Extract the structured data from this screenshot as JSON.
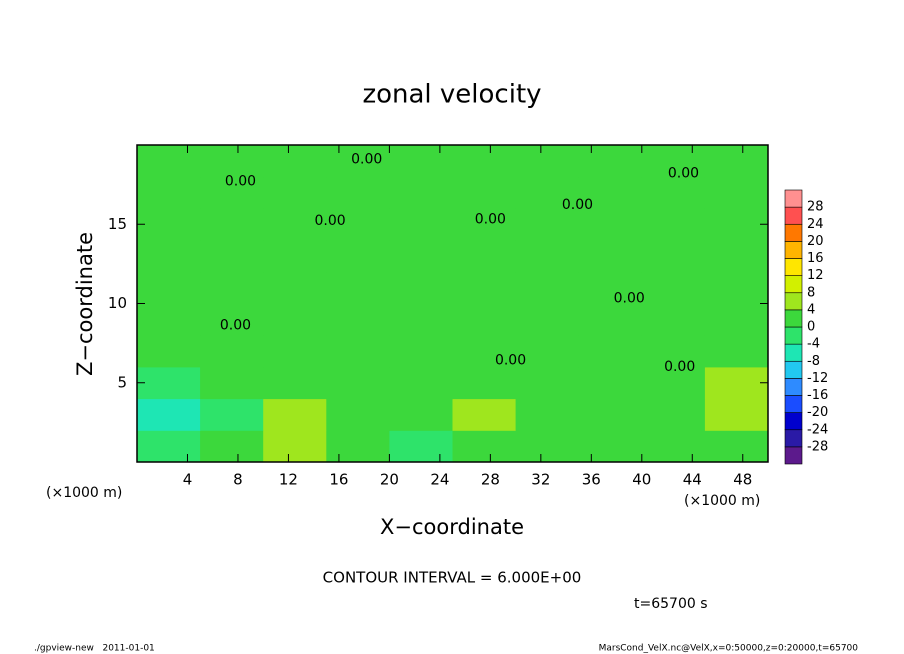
{
  "chart_data": {
    "type": "contour",
    "title": "zonal velocity",
    "xlabel": "X−coordinate",
    "ylabel": "Z−coordinate",
    "xunit": "(×1000 m)",
    "yunit": "(×1000 m)",
    "interval_text": "CONTOUR INTERVAL = 6.000E+00",
    "time_text": "t=65700 s",
    "footer_left": "./gpview-new   2011-01-01",
    "footer_right": "MarsCond_VelX.nc@VelX,x=0:50000,z=0:20000,t=65700",
    "xlim": [
      0,
      50
    ],
    "ylim": [
      0,
      20
    ],
    "xticks": [
      4,
      8,
      12,
      16,
      20,
      24,
      28,
      32,
      36,
      40,
      44,
      48
    ],
    "yticks": [
      5,
      10,
      15
    ],
    "x": [
      2.5,
      7.5,
      12.5,
      17.5,
      22.5,
      27.5,
      32.5,
      37.5,
      42.5,
      47.5
    ],
    "z": [
      1,
      3,
      5,
      7,
      9,
      11,
      13,
      15,
      17,
      19
    ],
    "values": [
      [
        -2,
        2,
        4,
        1,
        -1,
        3,
        2,
        1,
        3,
        2
      ],
      [
        -5,
        -3,
        5,
        3,
        1,
        5,
        2,
        3,
        2,
        4
      ],
      [
        -2,
        1,
        3,
        2,
        2,
        1,
        1,
        2,
        3,
        5
      ],
      [
        1,
        2,
        1,
        2,
        2,
        1,
        2,
        1,
        2,
        3
      ],
      [
        2,
        1,
        2,
        2,
        1,
        2,
        1,
        2,
        1,
        2
      ],
      [
        1,
        2,
        2,
        1,
        2,
        2,
        1,
        1,
        2,
        1
      ],
      [
        2,
        2,
        1,
        2,
        2,
        1,
        2,
        2,
        1,
        2
      ],
      [
        1,
        2,
        2,
        1,
        2,
        2,
        2,
        1,
        2,
        2
      ],
      [
        2,
        1,
        2,
        2,
        1,
        2,
        2,
        2,
        2,
        1
      ],
      [
        1,
        2,
        2,
        1,
        2,
        2,
        1,
        2,
        2,
        2
      ]
    ],
    "levels": [
      -28,
      -24,
      -20,
      -16,
      -12,
      -8,
      -4,
      0,
      4,
      8,
      12,
      16,
      20,
      24,
      28
    ],
    "colors": [
      "#5c1a8c",
      "#2a1aa6",
      "#0000cd",
      "#1a4dff",
      "#2e8bff",
      "#22c8f0",
      "#1ee6b4",
      "#2ee36a",
      "#3cd83c",
      "#9fe61e",
      "#d2f000",
      "#ffe600",
      "#ffb400",
      "#ff7800",
      "#ff5050",
      "#ff9090"
    ],
    "contour_labels": [
      {
        "text": "0.00",
        "x": 18.2,
        "z": 19.1
      },
      {
        "text": "0.00",
        "x": 8.2,
        "z": 17.7
      },
      {
        "text": "0.00",
        "x": 15.3,
        "z": 15.2
      },
      {
        "text": "0.00",
        "x": 28,
        "z": 15.3
      },
      {
        "text": "0.00",
        "x": 34.9,
        "z": 16.2
      },
      {
        "text": "0.00",
        "x": 43.3,
        "z": 18.2
      },
      {
        "text": "0.00",
        "x": 39,
        "z": 10.3
      },
      {
        "text": "0.00",
        "x": 7.8,
        "z": 8.6
      },
      {
        "text": "0.00",
        "x": 29.6,
        "z": 6.4
      },
      {
        "text": "0.00",
        "x": 43,
        "z": 6
      }
    ]
  }
}
